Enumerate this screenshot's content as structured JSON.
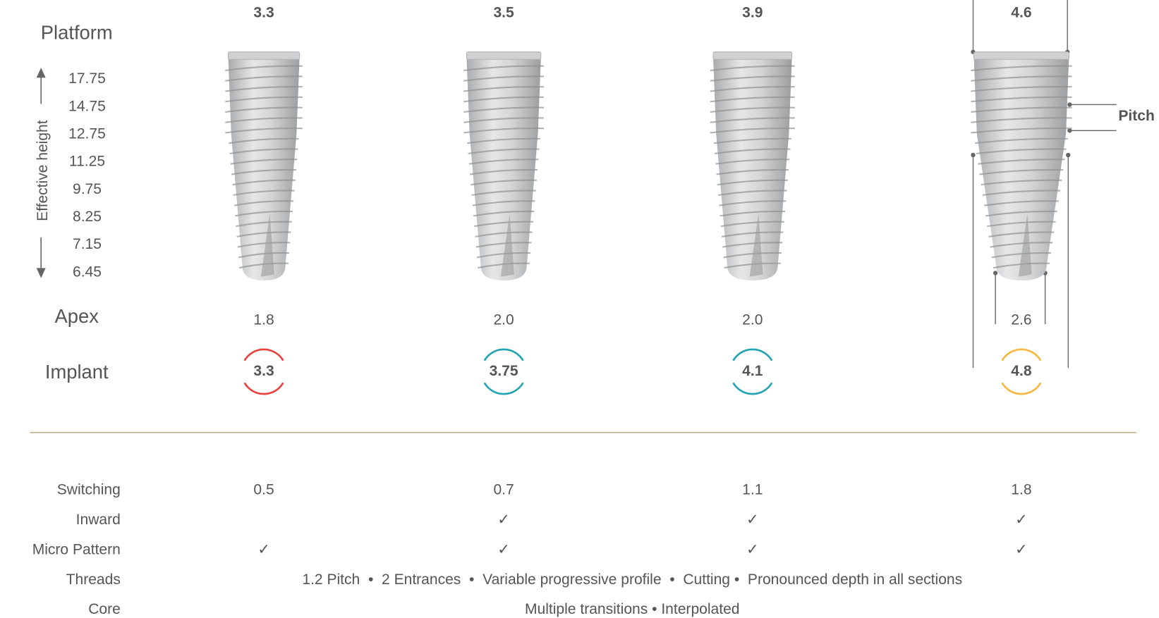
{
  "labels": {
    "platform": "Platform",
    "apex": "Apex",
    "implant": "Implant",
    "effective_height": "Effective height",
    "pitch": "Pitch"
  },
  "heights": [
    "17.75",
    "14.75",
    "12.75",
    "11.25",
    "9.75",
    "8.25",
    "7.15",
    "6.45"
  ],
  "implants": [
    {
      "platform": "3.3",
      "apex": "1.8",
      "implant": "3.3",
      "color": "#e8413c"
    },
    {
      "platform": "3.5",
      "apex": "2.0",
      "implant": "3.75",
      "color": "#1fa3b0"
    },
    {
      "platform": "3.9",
      "apex": "2.0",
      "implant": "4.1",
      "color": "#1fa3b0"
    },
    {
      "platform": "4.6",
      "apex": "2.6",
      "implant": "4.8",
      "color": "#f6b73c"
    }
  ],
  "table": {
    "rows": [
      {
        "label": "Switching",
        "cells": [
          "0.5",
          "0.7",
          "1.1",
          "1.8"
        ]
      },
      {
        "label": "Inward",
        "cells": [
          null,
          "✓",
          "✓",
          "✓"
        ]
      },
      {
        "label": "Micro Pattern",
        "cells": [
          "✓",
          "✓",
          "✓",
          "✓"
        ]
      },
      {
        "label": "Threads",
        "text": "1.2 Pitch  •  2 Entrances  •  Variable progressive profile  •  Cutting •  Pronounced depth in all sections"
      },
      {
        "label": "Core",
        "text": "Multiple transitions • Interpolated"
      }
    ]
  }
}
